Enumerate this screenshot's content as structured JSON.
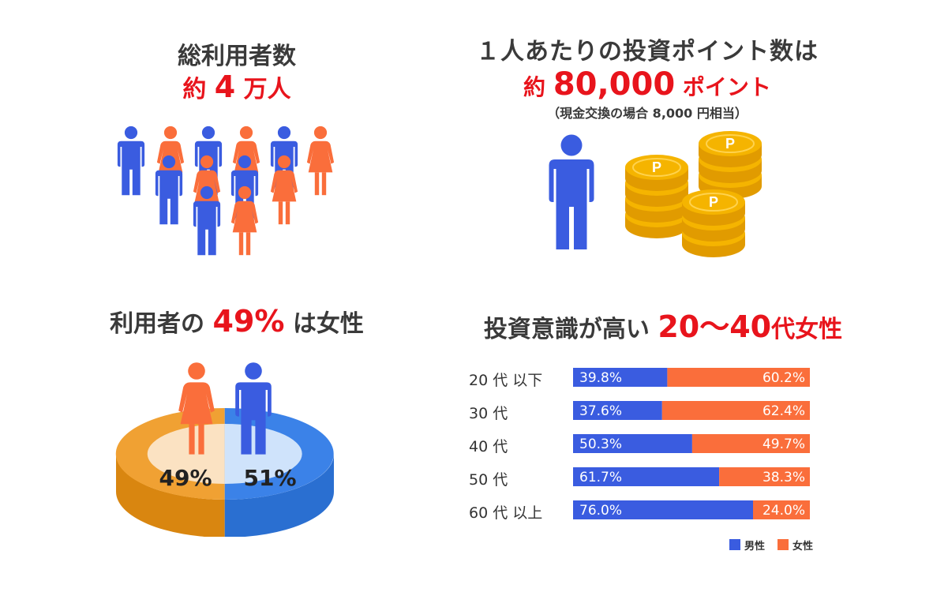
{
  "colors": {
    "male": "#3a5ce0",
    "female": "#fa6e3b",
    "red": "#e8141c",
    "coin": "#f5b400",
    "coin_dark": "#e19b00"
  },
  "users": {
    "title": "総利用者数",
    "value_prefix": "約",
    "value_number": "4",
    "value_suffix": "万人",
    "icons": [
      "male-person-icon",
      "female-person-icon"
    ]
  },
  "points": {
    "title": "１人あたりの投資ポイント数は",
    "value_prefix": "約",
    "value_number": "80,000",
    "value_suffix": "ポイント",
    "note": "（現金交換の場合 8,000 円相当）",
    "coin_label": "P",
    "icons": [
      "male-person-icon",
      "coin-stack-icon"
    ]
  },
  "gender": {
    "title_prefix": "利用者の",
    "title_number": "49%",
    "title_suffix": "は女性"
  },
  "age": {
    "title_prefix": "投資意識が高い",
    "title_number": "20〜40",
    "title_suffix": "代女性",
    "legend_male": "男性",
    "legend_female": "女性"
  },
  "chart_data": [
    {
      "type": "pie",
      "categories": [
        "女性",
        "男性"
      ],
      "values": [
        49,
        51
      ],
      "data_labels": [
        "49%",
        "51%"
      ]
    },
    {
      "type": "bar",
      "orientation": "horizontal",
      "stacked": true,
      "categories": [
        "20 代 以下",
        "30 代",
        "40 代",
        "50 代",
        "60 代 以上"
      ],
      "series": [
        {
          "name": "男性",
          "color": "#3a5ce0",
          "values": [
            39.8,
            37.6,
            50.3,
            61.7,
            76.0
          ],
          "labels": [
            "39.8%",
            "37.6%",
            "50.3%",
            "61.7%",
            "76.0%"
          ]
        },
        {
          "name": "女性",
          "color": "#fa6e3b",
          "values": [
            60.2,
            62.4,
            49.7,
            38.3,
            24.0
          ],
          "labels": [
            "60.2%",
            "62.4%",
            "49.7%",
            "38.3%",
            "24.0%"
          ]
        }
      ],
      "xlim": [
        0,
        100
      ],
      "legend": "bottom-right"
    }
  ]
}
